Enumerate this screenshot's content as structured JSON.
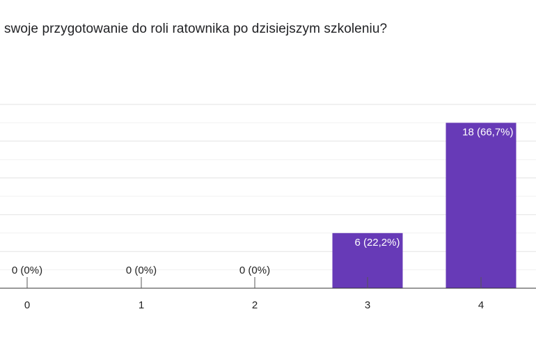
{
  "chart_data": {
    "type": "bar",
    "title": "swoje przygotowanie do roli ratownika po dzisiejszym szkoleniu?",
    "categories": [
      "0",
      "1",
      "2",
      "3",
      "4"
    ],
    "values": [
      0,
      0,
      0,
      6,
      18
    ],
    "data_labels": [
      "0 (0%)",
      "0 (0%)",
      "0 (0%)",
      "6 (22,2%)",
      "18 (66,7%)"
    ],
    "ylim": [
      0,
      20
    ],
    "grid": true,
    "bar_color": "#673ab7"
  }
}
